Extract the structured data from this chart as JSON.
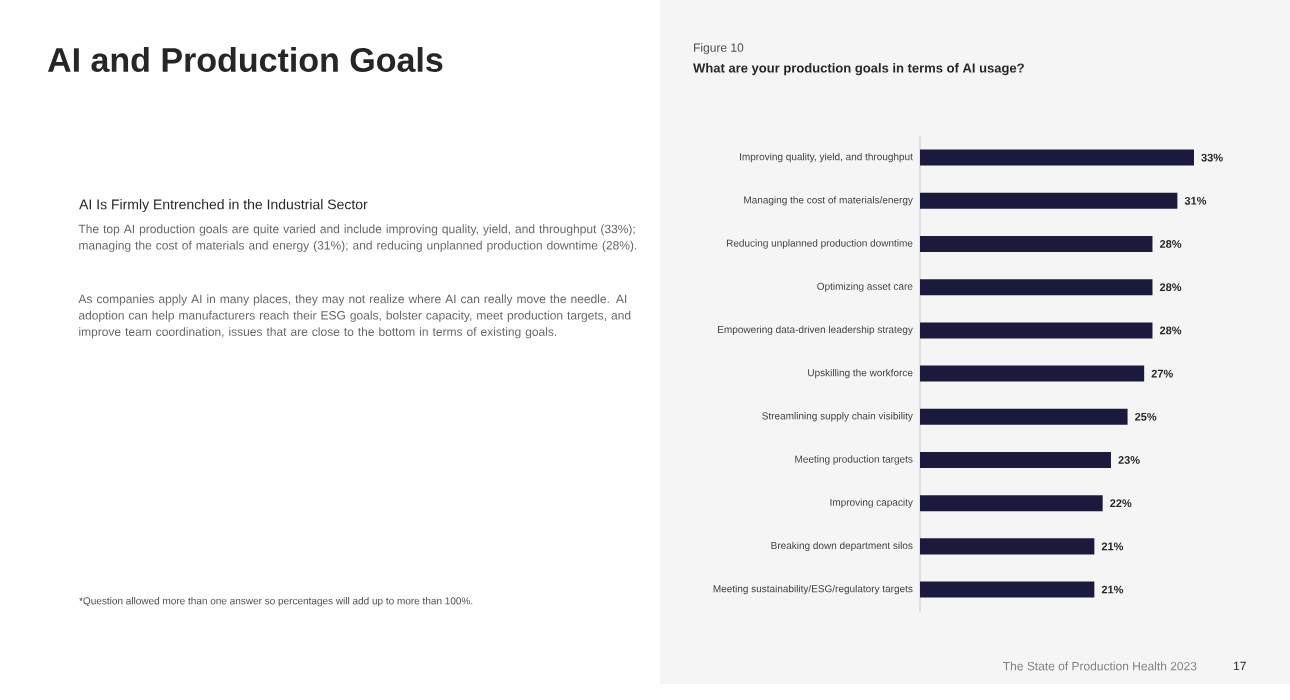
{
  "chart_data": {
    "type": "bar",
    "orientation": "horizontal",
    "title": "What are your production goals in terms of AI usage?",
    "categories": [
      "Improving quality, yield, and throughput",
      "Managing the cost of materials/energy",
      "Reducing unplanned production downtime",
      "Optimizing asset care",
      "Empowering data-driven leadership strategy",
      "Upskilling the workforce",
      "Streamlining supply chain visibility",
      "Meeting production targets",
      "Improving capacity",
      "Breaking down department silos",
      "Meeting sustainability/ESG/regulatory targets"
    ],
    "values": [
      33,
      31,
      28,
      28,
      28,
      27,
      25,
      23,
      22,
      21,
      21
    ],
    "value_labels": [
      "33%",
      "31%",
      "28%",
      "28%",
      "28%",
      "27%",
      "25%",
      "23%",
      "22%",
      "21%",
      "21%"
    ],
    "color": "#1c1a3c",
    "annotations": [
      "Figure 10",
      "AI and Production Goals",
      "AI Is Firmly Entrenched in the Industrial Sector",
      "The top AI production goals are quite varied and include improving quality, yield, and throughput (33%); managing the cost of materials and energy (31%); and reducing unplanned production downtime (28%).",
      "As companies apply AI in many places, they may not realize where AI can really move the needle. AI adoption can help manufacturers reach their ESG goals, bolster capacity, meet production targets, and improve team coordination, issues that are close to the bottom in terms of existing goals.",
      "*Question allowed more than one answer so percentages will add up to more than 100%.",
      "The State of Production Health 2023",
      "17"
    ]
  }
}
